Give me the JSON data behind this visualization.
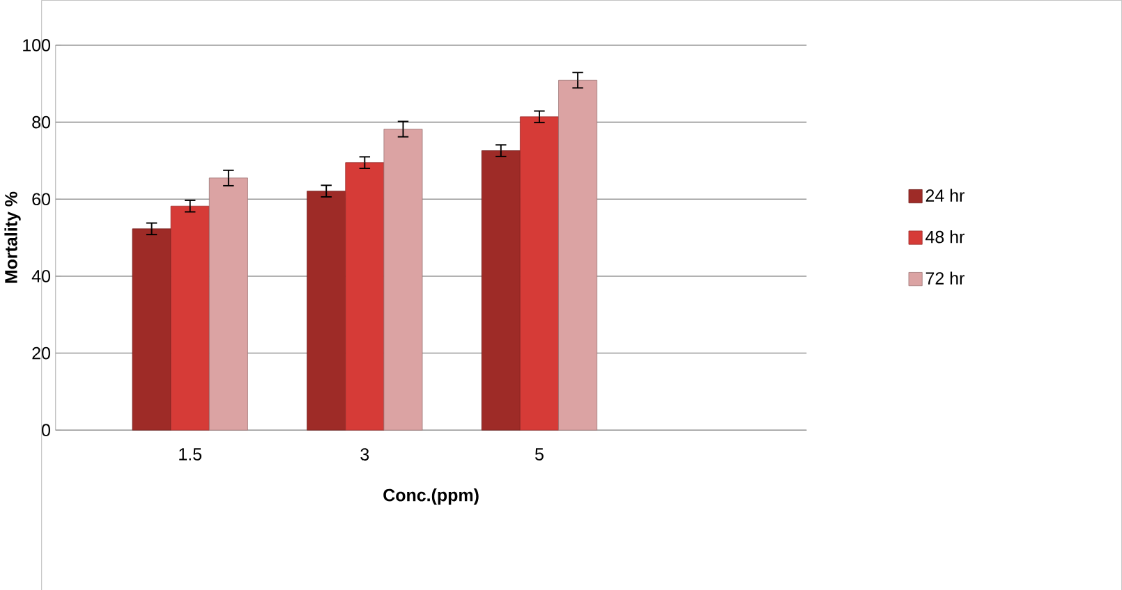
{
  "chart_data": {
    "type": "bar",
    "xlabel": "Conc.(ppm)",
    "ylabel": "Mortality %",
    "categories": [
      "1.5",
      "3",
      "5"
    ],
    "series": [
      {
        "name": "24 hr",
        "color": "#9e2b27",
        "values": [
          52.3,
          62.1,
          72.6
        ],
        "errors": [
          1.5,
          1.5,
          1.5
        ]
      },
      {
        "name": "48 hr",
        "color": "#d63b37",
        "values": [
          58.2,
          69.5,
          81.4
        ],
        "errors": [
          1.5,
          1.5,
          1.5
        ]
      },
      {
        "name": "72 hr",
        "color": "#dba3a3",
        "values": [
          65.5,
          78.2,
          90.9
        ],
        "errors": [
          2,
          2,
          2
        ]
      }
    ],
    "ylim": [
      0,
      100
    ],
    "yticks": [
      0,
      20,
      40,
      60,
      80,
      100
    ],
    "grid": "y",
    "legend": "right"
  }
}
